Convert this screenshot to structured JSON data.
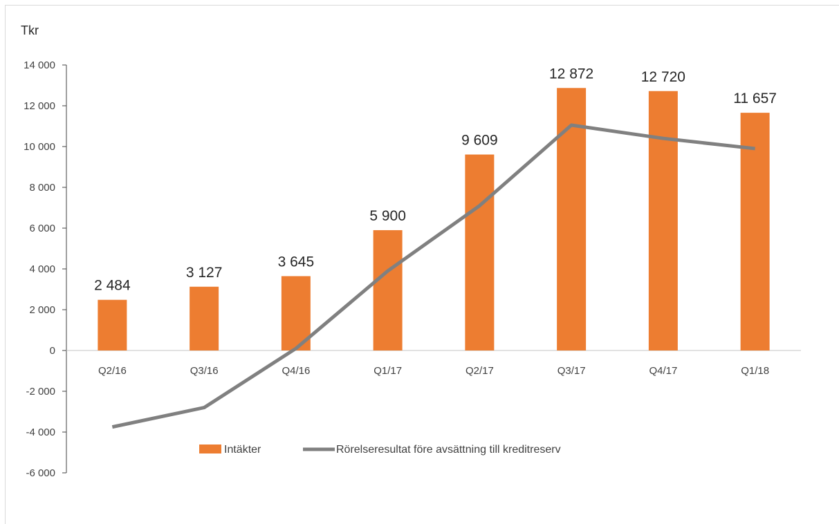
{
  "chart_data": {
    "type": "bar",
    "unit_label": "Tkr",
    "categories": [
      "Q2/16",
      "Q3/16",
      "Q4/16",
      "Q1/17",
      "Q2/17",
      "Q3/17",
      "Q4/17",
      "Q1/18"
    ],
    "series": [
      {
        "name": "Intäkter",
        "type": "bar",
        "color": "#ED7D31",
        "values": [
          2484,
          3127,
          3645,
          5900,
          9609,
          12872,
          12720,
          11657
        ],
        "labels": [
          "2 484",
          "3 127",
          "3 645",
          "5 900",
          "9 609",
          "12 872",
          "12 720",
          "11 657"
        ]
      },
      {
        "name": "Rörelseresultat före avsättning till kreditreserv",
        "type": "line",
        "color": "#808080",
        "values": [
          -3750,
          -2800,
          100,
          3900,
          7100,
          11050,
          10400,
          9900
        ]
      }
    ],
    "ylim": [
      -6000,
      14000
    ],
    "yticks": [
      14000,
      12000,
      10000,
      8000,
      6000,
      4000,
      2000,
      0,
      -2000,
      -4000,
      -6000
    ],
    "ytick_labels": [
      "14 000",
      "12 000",
      "10 000",
      "8 000",
      "6 000",
      "4 000",
      "2 000",
      "0",
      "-2 000",
      "-4 000",
      "-6 000"
    ],
    "legend": "bottom-center",
    "grid": false
  }
}
